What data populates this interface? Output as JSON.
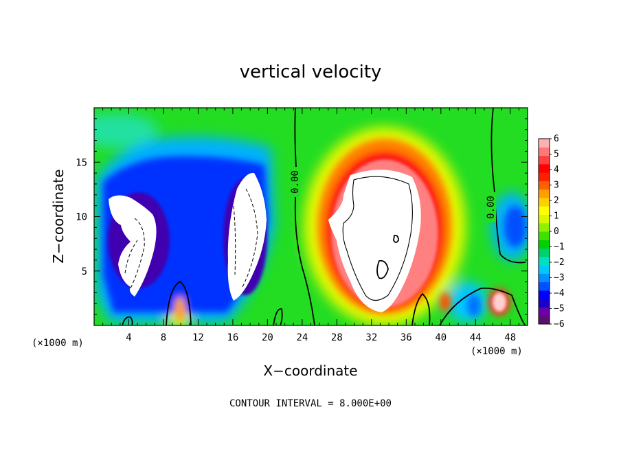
{
  "chart_data": {
    "type": "heatmap",
    "title": "vertical velocity",
    "xlabel": "X−coordinate",
    "ylabel": "Z−coordinate",
    "x_unit": "(×1000 m)",
    "y_unit": "(×1000 m)",
    "xlim": [
      0,
      50
    ],
    "ylim": [
      0,
      20
    ],
    "x_ticks": [
      4,
      8,
      12,
      16,
      20,
      24,
      28,
      32,
      36,
      40,
      44,
      48
    ],
    "y_ticks": [
      5,
      10,
      15
    ],
    "x_tick_labels": [
      "4",
      "8",
      "12",
      "16",
      "20",
      "24",
      "28",
      "32",
      "36",
      "40",
      "44",
      "48"
    ],
    "y_tick_labels": [
      "5",
      "10",
      "15"
    ],
    "contour_labels": [
      "0.00",
      "0.00"
    ],
    "colorbar": {
      "min": -6,
      "max": 6,
      "labels": [
        "6",
        "5",
        "4",
        "3",
        "2",
        "1",
        "0",
        "−1",
        "−2",
        "−3",
        "−4",
        "−5",
        "−6"
      ],
      "colors": [
        "#5a1070",
        "#6a00a8",
        "#1a00c8",
        "#0000ff",
        "#0050ff",
        "#0090ff",
        "#00c8ff",
        "#00e0c0",
        "#00d070",
        "#00d000",
        "#40e000",
        "#90f000",
        "#d8f800",
        "#ffff00",
        "#ffd000",
        "#ffa000",
        "#ff6000",
        "#ff2000",
        "#ff0000",
        "#ff4040",
        "#ff7878",
        "#ffb0b0"
      ]
    },
    "note": "CONTOUR INTERVAL = 8.000E+00",
    "grid": false
  }
}
